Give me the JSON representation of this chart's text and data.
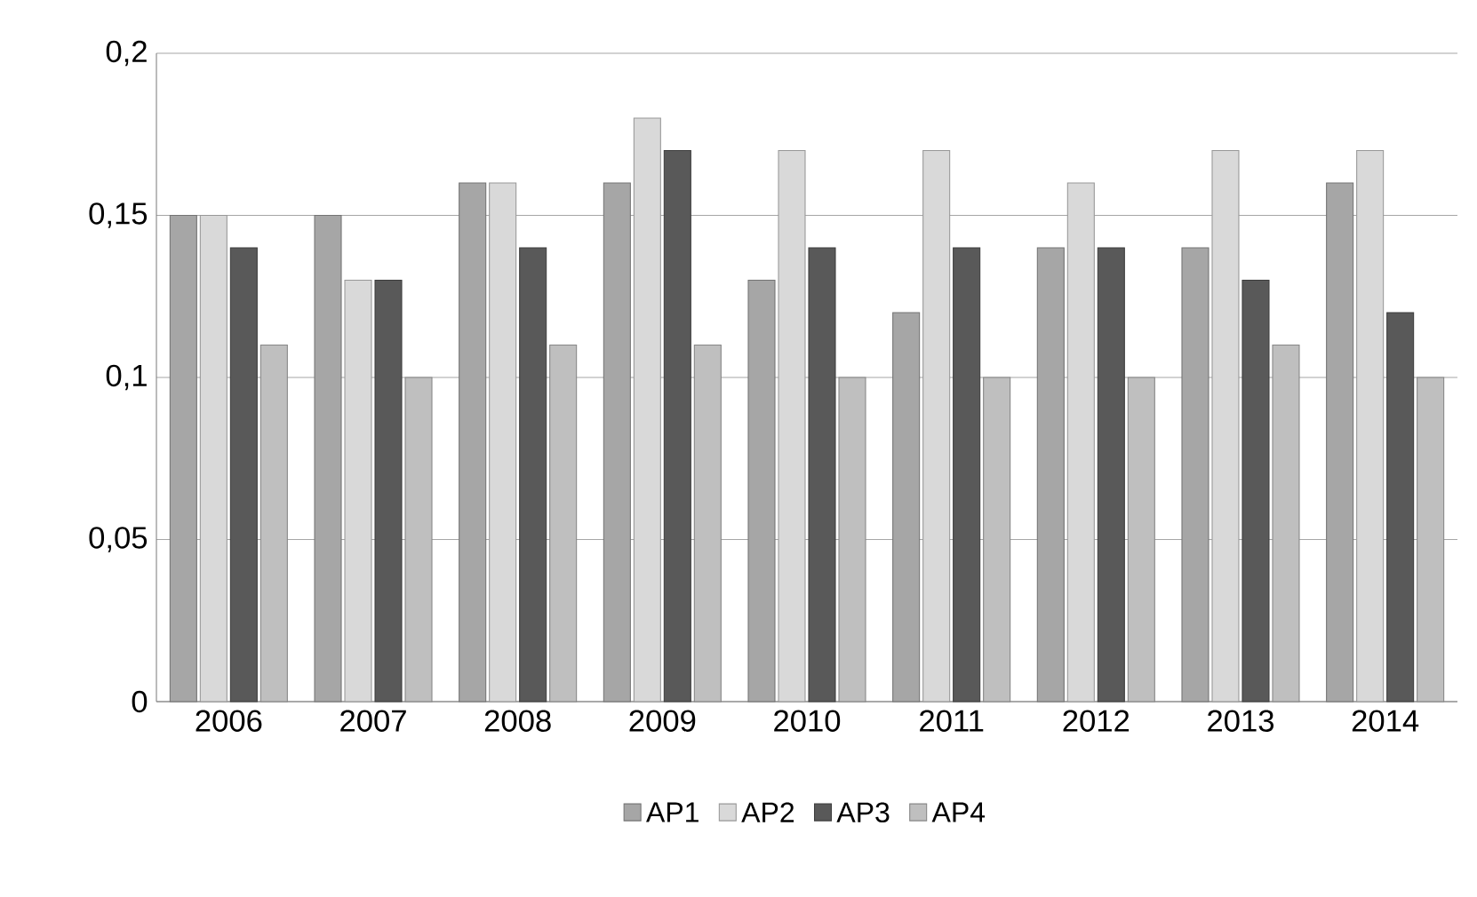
{
  "chart_data": {
    "type": "bar",
    "categories": [
      "2006",
      "2007",
      "2008",
      "2009",
      "2010",
      "2011",
      "2012",
      "2013",
      "2014"
    ],
    "series": [
      {
        "name": "AP1",
        "color": "#a6a6a6",
        "values": [
          0.15,
          0.15,
          0.16,
          0.16,
          0.13,
          0.12,
          0.14,
          0.14,
          0.16
        ]
      },
      {
        "name": "AP2",
        "color": "#d9d9d9",
        "values": [
          0.15,
          0.13,
          0.16,
          0.18,
          0.17,
          0.17,
          0.16,
          0.17,
          0.17
        ]
      },
      {
        "name": "AP3",
        "color": "#595959",
        "values": [
          0.14,
          0.13,
          0.14,
          0.17,
          0.14,
          0.14,
          0.14,
          0.13,
          0.12
        ]
      },
      {
        "name": "AP4",
        "color": "#bfbfbf",
        "values": [
          0.11,
          0.1,
          0.11,
          0.11,
          0.1,
          0.1,
          0.1,
          0.11,
          0.1
        ]
      }
    ],
    "ylim": [
      0,
      0.2
    ],
    "yticks": [
      {
        "value": 0,
        "label": "0"
      },
      {
        "value": 0.05,
        "label": "0,05"
      },
      {
        "value": 0.1,
        "label": "0,1"
      },
      {
        "value": 0.15,
        "label": "0,15"
      },
      {
        "value": 0.2,
        "label": "0,2"
      }
    ],
    "grid": "y",
    "legend": "bottom"
  }
}
